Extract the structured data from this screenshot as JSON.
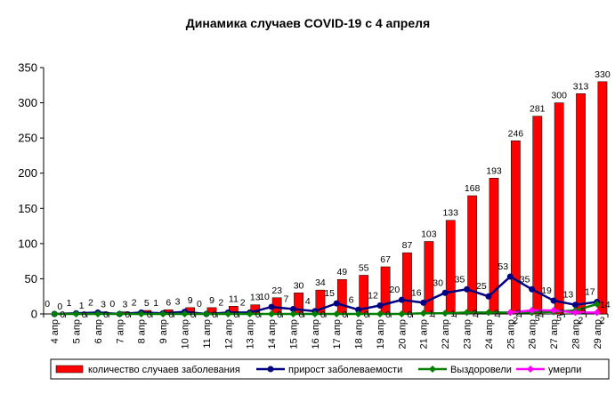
{
  "chart_data": {
    "type": "bar",
    "title": "Динамика случаев COVID-19 с 4 апреля",
    "xlabel": "",
    "ylabel": "",
    "ylim": [
      0,
      350
    ],
    "yticks": [
      0,
      50,
      100,
      150,
      200,
      250,
      300,
      350
    ],
    "grid": false,
    "legend_position": "bottom",
    "categories": [
      "4 апр",
      "5 апр",
      "6 апр",
      "7 апр",
      "8 апр",
      "9 апр",
      "10 апр",
      "11 апр",
      "12 апр",
      "13 апр",
      "14 апр",
      "15 апр",
      "16 апр",
      "17 апр",
      "18 апр",
      "19 апр",
      "20 апр",
      "21 апр",
      "22 апр",
      "23 апр",
      "24 апр",
      "25 апр",
      "26 апр",
      "27 апр",
      "28 апр",
      "29 апр"
    ],
    "series": [
      {
        "name": "количество случаев заболевания",
        "type": "bar",
        "color": "#ff0000",
        "values": [
          0,
          1,
          3,
          3,
          5,
          6,
          9,
          9,
          11,
          13,
          23,
          30,
          34,
          49,
          55,
          67,
          87,
          103,
          133,
          168,
          193,
          246,
          281,
          300,
          313,
          330
        ]
      },
      {
        "name": "прирост заболеваемости",
        "type": "line",
        "color": "#000080",
        "values": [
          0,
          1,
          2,
          0,
          2,
          1,
          3,
          0,
          2,
          2,
          10,
          7,
          4,
          15,
          6,
          12,
          20,
          16,
          30,
          35,
          25,
          53,
          35,
          19,
          13,
          17
        ]
      },
      {
        "name": "Выздоровели",
        "type": "line",
        "color": "#008000",
        "values": [
          0,
          0,
          0,
          0,
          0,
          0,
          0,
          0,
          0,
          0,
          0,
          0,
          0,
          0,
          0,
          0,
          0,
          1,
          1,
          2,
          2,
          2,
          2,
          3,
          5,
          14
        ]
      },
      {
        "name": "умерли",
        "type": "line",
        "color": "#ff00ff",
        "values": [
          null,
          null,
          null,
          null,
          null,
          null,
          null,
          null,
          null,
          null,
          null,
          null,
          null,
          null,
          null,
          null,
          null,
          null,
          null,
          null,
          null,
          2,
          5,
          5,
          2,
          2
        ]
      }
    ]
  }
}
